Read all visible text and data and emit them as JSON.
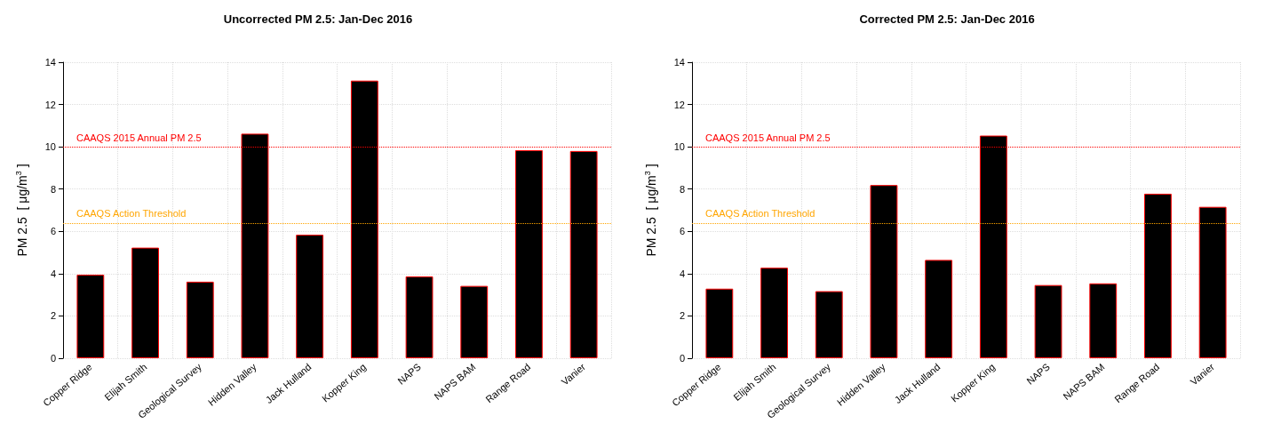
{
  "chart_data": [
    {
      "type": "bar",
      "title": "Uncorrected PM 2.5: Jan-Dec 2016",
      "ylabel": "PM 2.5  [ μg/m$^{3}$ ]",
      "categories": [
        "Copper Ridge",
        "Elijah Smith",
        "Geological Survey",
        "Hidden Valley",
        "Jack Hulland",
        "Kopper King",
        "NAPS",
        "NAPS BAM",
        "Range Road",
        "Vanier"
      ],
      "series": [
        {
          "color": "#000000",
          "values": [
            3.95,
            5.23,
            3.62,
            10.62,
            5.84,
            13.13,
            3.87,
            3.42,
            9.84,
            9.8
          ]
        }
      ],
      "ylim": [
        0,
        14
      ],
      "yticks": [
        0,
        2,
        4,
        6,
        8,
        10,
        12,
        14
      ],
      "grid": true,
      "ref_lines": [
        {
          "axis": "y",
          "value": 10,
          "label": "CAAQS 2015 Annual PM 2.5",
          "color": "#ff0000",
          "line_style": "dotted"
        },
        {
          "axis": "y",
          "value": 6.4,
          "label": "CAAQS Action Threshold",
          "color": "#ffa500",
          "line_style": "dotted"
        }
      ]
    },
    {
      "type": "bar",
      "title": "Corrected PM 2.5: Jan-Dec 2016",
      "ylabel": "PM 2.5  [ μg/m$^{3}$ ]",
      "categories": [
        "Copper Ridge",
        "Elijah Smith",
        "Geological Survey",
        "Hidden Valley",
        "Jack Hulland",
        "Kopper King",
        "NAPS",
        "NAPS BAM",
        "Range Road",
        "Vanier"
      ],
      "series": [
        {
          "color": "#000000",
          "values": [
            3.29,
            4.28,
            3.17,
            8.19,
            4.65,
            10.53,
            3.46,
            3.54,
            7.78,
            7.16
          ]
        }
      ],
      "ylim": [
        0,
        14
      ],
      "yticks": [
        0,
        2,
        4,
        6,
        8,
        10,
        12,
        14
      ],
      "grid": true,
      "ref_lines": [
        {
          "axis": "y",
          "value": 10,
          "label": "CAAQS 2015 Annual PM 2.5",
          "color": "#ff0000",
          "line_style": "dotted"
        },
        {
          "axis": "y",
          "value": 6.4,
          "label": "CAAQS Action Threshold",
          "color": "#ffa500",
          "line_style": "dotted"
        }
      ]
    }
  ]
}
